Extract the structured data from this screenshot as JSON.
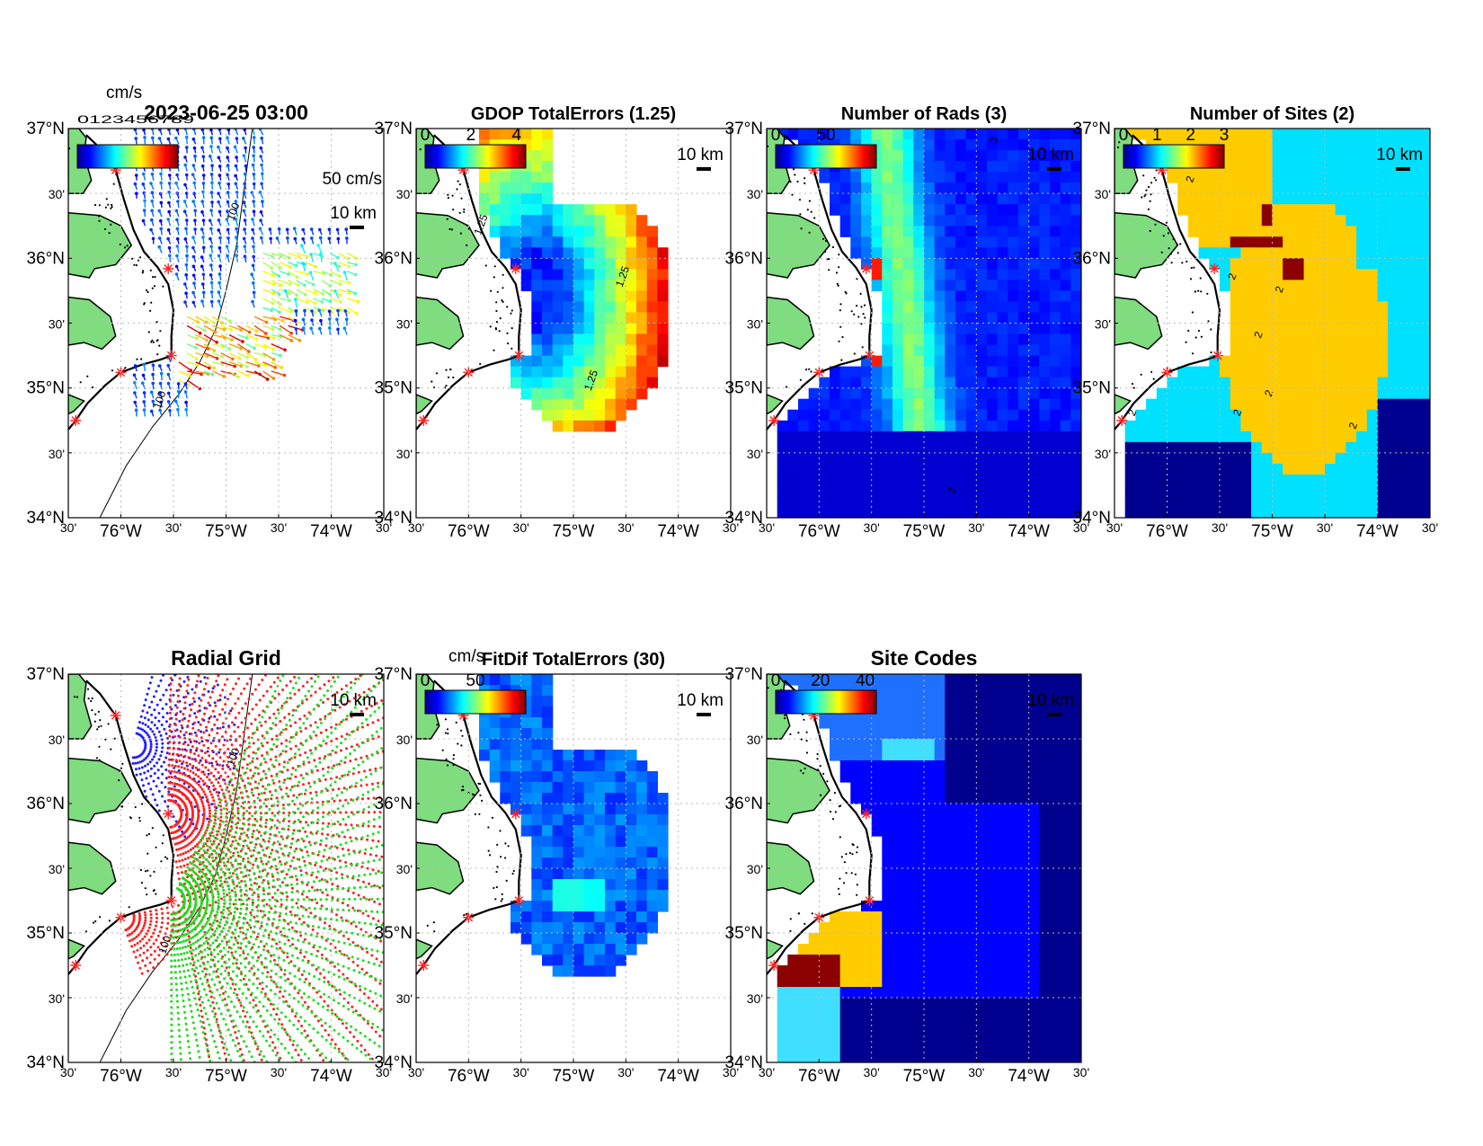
{
  "colors": {
    "land": "#7fdc7f",
    "coast": "#000000",
    "site_marker": "#ff2222",
    "grid": "#bbbbbb",
    "radial_site_colors": [
      "#2020ff",
      "#ff2020",
      "#20dd20",
      "#ff2020"
    ],
    "site_code_palette": [
      "#00008f",
      "#0000ff",
      "#1f70ff",
      "#40dfff",
      "#ffcc00",
      "#8b0000"
    ]
  },
  "axes": {
    "lat_labels": [
      "37°N",
      "30'",
      "36°N",
      "30'",
      "35°N",
      "30'",
      "34°N"
    ],
    "lon_labels": [
      "30'",
      "76°W",
      "30'",
      "75°W",
      "30'",
      "74°W",
      "30'"
    ],
    "lon_range": [
      -76.5,
      -73.5
    ],
    "lat_range": [
      34.0,
      37.0
    ],
    "grid": true
  },
  "sites": [
    {
      "lon": -76.05,
      "lat": 36.68
    },
    {
      "lon": -75.55,
      "lat": 35.92
    },
    {
      "lon": -75.52,
      "lat": 35.25
    },
    {
      "lon": -76.0,
      "lat": 35.12
    },
    {
      "lon": -76.43,
      "lat": 34.75
    }
  ],
  "panels": [
    {
      "id": "vectors",
      "title": "2023-06-25 03:00",
      "colorbar_units": "cm/s",
      "colorbar_overlap_text": "0123456789",
      "vector_scale_label": "50 cm/s",
      "scale_bar_label": "10 km",
      "contour_labels": [
        "100",
        "100"
      ]
    },
    {
      "id": "gdop",
      "title": "GDOP TotalErrors (1.25)",
      "colorbar_ticks": [
        "0",
        "2",
        "4"
      ],
      "scale_bar_label": "10 km",
      "contour_labels": [
        "1.25",
        "1.25",
        "1.25"
      ]
    },
    {
      "id": "nrads",
      "title": "Number of Rads (3)",
      "colorbar_ticks": [
        "0",
        "50"
      ],
      "scale_bar_label": "10 km",
      "contour_labels": [
        "3",
        "3"
      ]
    },
    {
      "id": "nsites",
      "title": "Number of Sites (2)",
      "colorbar_ticks": [
        "0",
        "1",
        "2",
        "3"
      ],
      "scale_bar_label": "10 km",
      "contour_labels": [
        "2",
        "2",
        "2",
        "2",
        "2",
        "2",
        "2",
        "2"
      ]
    },
    {
      "id": "radgrid",
      "title": "Radial Grid",
      "scale_bar_label": "10 km",
      "contour_labels": [
        "100",
        "100"
      ]
    },
    {
      "id": "fitdif",
      "title": "FitDif TotalErrors (30)",
      "colorbar_units": "cm/s",
      "colorbar_ticks": [
        "0",
        "50"
      ],
      "scale_bar_label": "10 km"
    },
    {
      "id": "sitecodes",
      "title": "Site Codes",
      "colorbar_ticks": [
        "0",
        "20",
        "40"
      ],
      "scale_bar_label": "10 km"
    }
  ]
}
